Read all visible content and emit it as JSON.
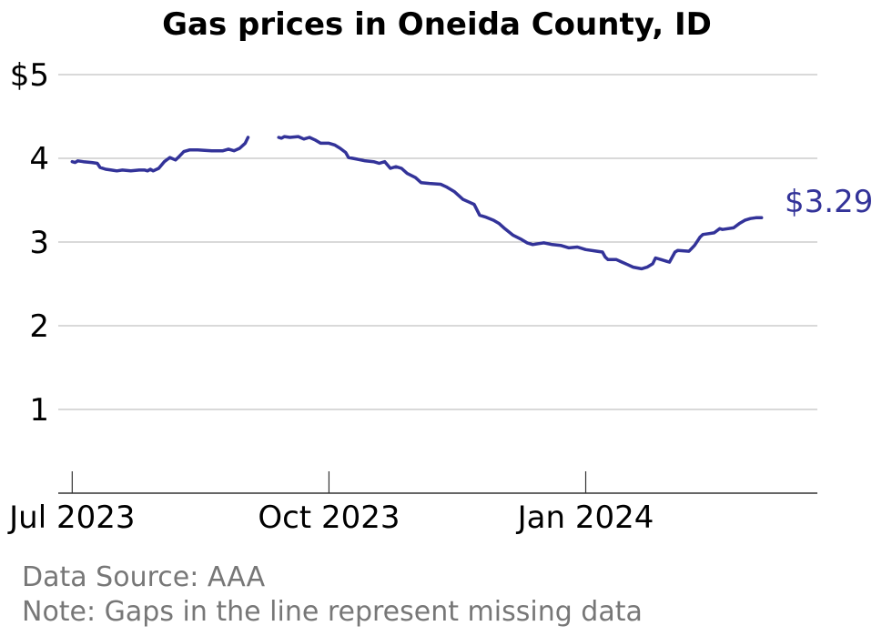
{
  "chart_data": {
    "type": "line",
    "title": "Gas prices in Oneida County, ID",
    "xlabel": "",
    "ylabel": "",
    "ylim": [
      0,
      5
    ],
    "ytick_values": [
      1,
      2,
      3,
      4,
      5
    ],
    "ytick_labels": [
      "1",
      "2",
      "3",
      "4",
      "$5"
    ],
    "xlim": [
      "2023-06-26",
      "2024-03-24"
    ],
    "xtick_dates": [
      "2023-07-01",
      "2023-10-01",
      "2024-01-01"
    ],
    "xtick_labels": [
      "Jul 2023",
      "Oct 2023",
      "Jan 2024"
    ],
    "grid": "horizontal",
    "color": "#333399",
    "end_label": "$3.29",
    "series": [
      {
        "segments": [
          [
            [
              "2023-07-01",
              3.96
            ],
            [
              "2023-07-02",
              3.95
            ],
            [
              "2023-07-03",
              3.97
            ],
            [
              "2023-07-05",
              3.96
            ],
            [
              "2023-07-08",
              3.95
            ],
            [
              "2023-07-10",
              3.94
            ],
            [
              "2023-07-11",
              3.89
            ],
            [
              "2023-07-13",
              3.87
            ],
            [
              "2023-07-15",
              3.86
            ],
            [
              "2023-07-17",
              3.85
            ],
            [
              "2023-07-19",
              3.86
            ],
            [
              "2023-07-22",
              3.85
            ],
            [
              "2023-07-25",
              3.86
            ],
            [
              "2023-07-27",
              3.86
            ],
            [
              "2023-07-28",
              3.85
            ],
            [
              "2023-07-29",
              3.87
            ],
            [
              "2023-07-30",
              3.85
            ],
            [
              "2023-08-01",
              3.88
            ],
            [
              "2023-08-03",
              3.96
            ],
            [
              "2023-08-05",
              4.01
            ],
            [
              "2023-08-07",
              3.98
            ],
            [
              "2023-08-08",
              4.01
            ],
            [
              "2023-08-10",
              4.08
            ],
            [
              "2023-08-12",
              4.1
            ],
            [
              "2023-08-15",
              4.1
            ],
            [
              "2023-08-20",
              4.09
            ],
            [
              "2023-08-24",
              4.09
            ],
            [
              "2023-08-26",
              4.11
            ],
            [
              "2023-08-28",
              4.09
            ],
            [
              "2023-08-30",
              4.12
            ],
            [
              "2023-09-01",
              4.18
            ],
            [
              "2023-09-02",
              4.25
            ]
          ],
          [
            [
              "2023-09-13",
              4.25
            ],
            [
              "2023-09-14",
              4.24
            ],
            [
              "2023-09-15",
              4.26
            ],
            [
              "2023-09-17",
              4.25
            ],
            [
              "2023-09-20",
              4.26
            ],
            [
              "2023-09-22",
              4.23
            ],
            [
              "2023-09-24",
              4.25
            ],
            [
              "2023-09-26",
              4.22
            ],
            [
              "2023-09-28",
              4.18
            ],
            [
              "2023-10-01",
              4.18
            ],
            [
              "2023-10-03",
              4.16
            ],
            [
              "2023-10-05",
              4.12
            ],
            [
              "2023-10-07",
              4.07
            ],
            [
              "2023-10-08",
              4.01
            ],
            [
              "2023-10-11",
              3.99
            ],
            [
              "2023-10-14",
              3.97
            ],
            [
              "2023-10-17",
              3.96
            ],
            [
              "2023-10-19",
              3.94
            ],
            [
              "2023-10-21",
              3.96
            ],
            [
              "2023-10-23",
              3.88
            ],
            [
              "2023-10-25",
              3.9
            ],
            [
              "2023-10-27",
              3.88
            ],
            [
              "2023-10-29",
              3.82
            ],
            [
              "2023-11-01",
              3.77
            ],
            [
              "2023-11-03",
              3.71
            ],
            [
              "2023-11-06",
              3.7
            ],
            [
              "2023-11-10",
              3.69
            ],
            [
              "2023-11-12",
              3.66
            ],
            [
              "2023-11-15",
              3.6
            ],
            [
              "2023-11-17",
              3.54
            ],
            [
              "2023-11-18",
              3.51
            ],
            [
              "2023-11-20",
              3.48
            ],
            [
              "2023-11-22",
              3.45
            ],
            [
              "2023-11-24",
              3.32
            ],
            [
              "2023-11-26",
              3.3
            ],
            [
              "2023-11-29",
              3.26
            ],
            [
              "2023-12-01",
              3.22
            ],
            [
              "2023-12-03",
              3.16
            ],
            [
              "2023-12-06",
              3.08
            ],
            [
              "2023-12-09",
              3.03
            ],
            [
              "2023-12-11",
              2.99
            ],
            [
              "2023-12-13",
              2.97
            ],
            [
              "2023-12-15",
              2.98
            ],
            [
              "2023-12-17",
              2.99
            ],
            [
              "2023-12-20",
              2.97
            ],
            [
              "2023-12-23",
              2.96
            ],
            [
              "2023-12-26",
              2.93
            ],
            [
              "2023-12-29",
              2.94
            ],
            [
              "2024-01-01",
              2.91
            ],
            [
              "2024-01-05",
              2.89
            ],
            [
              "2024-01-07",
              2.88
            ],
            [
              "2024-01-08",
              2.82
            ],
            [
              "2024-01-09",
              2.79
            ],
            [
              "2024-01-12",
              2.79
            ],
            [
              "2024-01-14",
              2.76
            ],
            [
              "2024-01-16",
              2.73
            ],
            [
              "2024-01-18",
              2.7
            ],
            [
              "2024-01-21",
              2.68
            ],
            [
              "2024-01-23",
              2.7
            ],
            [
              "2024-01-25",
              2.74
            ],
            [
              "2024-01-26",
              2.81
            ],
            [
              "2024-01-28",
              2.79
            ],
            [
              "2024-01-30",
              2.77
            ],
            [
              "2024-01-31",
              2.76
            ],
            [
              "2024-02-02",
              2.88
            ],
            [
              "2024-02-03",
              2.9
            ],
            [
              "2024-02-07",
              2.89
            ],
            [
              "2024-02-09",
              2.96
            ],
            [
              "2024-02-11",
              3.06
            ],
            [
              "2024-02-12",
              3.09
            ],
            [
              "2024-02-14",
              3.1
            ],
            [
              "2024-02-16",
              3.11
            ],
            [
              "2024-02-18",
              3.16
            ],
            [
              "2024-02-19",
              3.15
            ],
            [
              "2024-02-23",
              3.17
            ],
            [
              "2024-02-25",
              3.22
            ],
            [
              "2024-02-27",
              3.26
            ],
            [
              "2024-02-29",
              3.28
            ],
            [
              "2024-03-02",
              3.29
            ],
            [
              "2024-03-04",
              3.29
            ]
          ]
        ]
      }
    ]
  },
  "footer": {
    "source": "Data Source: AAA",
    "note": "Note: Gaps in the line represent missing data"
  }
}
